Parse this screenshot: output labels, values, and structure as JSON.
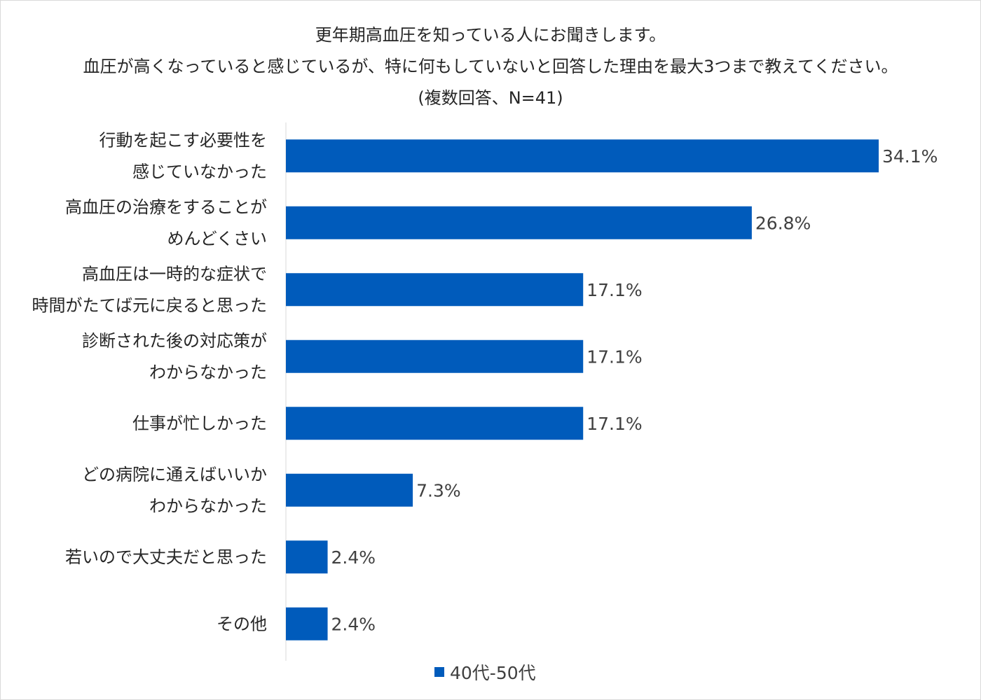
{
  "chart_data": {
    "type": "bar",
    "orientation": "horizontal",
    "title_lines": [
      "更年期高血圧を知っている人にお聞きします。",
      "血圧が高くなっていると感じているが、特に何もしていないと回答した理由を最大3つまで教えてください。",
      "(複数回答、N=41)"
    ],
    "categories": [
      [
        "行動を起こす必要性を",
        "感じていなかった"
      ],
      [
        "高血圧の治療をすることが",
        "めんどくさい"
      ],
      [
        "高血圧は一時的な症状で",
        "時間がたてば元に戻ると思った"
      ],
      [
        "診断された後の対応策が",
        "わからなかった"
      ],
      [
        "仕事が忙しかった"
      ],
      [
        "どの病院に通えばいいか",
        "わからなかった"
      ],
      [
        "若いので大丈夫だと思った"
      ],
      [
        "その他"
      ]
    ],
    "series": [
      {
        "name": "40代-50代",
        "color": "#005bbb",
        "values": [
          34.1,
          26.8,
          17.1,
          17.1,
          17.1,
          7.3,
          2.4,
          2.4
        ],
        "labels": [
          "34.1%",
          "26.8%",
          "17.1%",
          "17.1%",
          "17.1%",
          "7.3%",
          "2.4%",
          "2.4%"
        ]
      }
    ],
    "xlim": [
      0,
      40
    ],
    "grid": false,
    "legend_position": "bottom"
  }
}
